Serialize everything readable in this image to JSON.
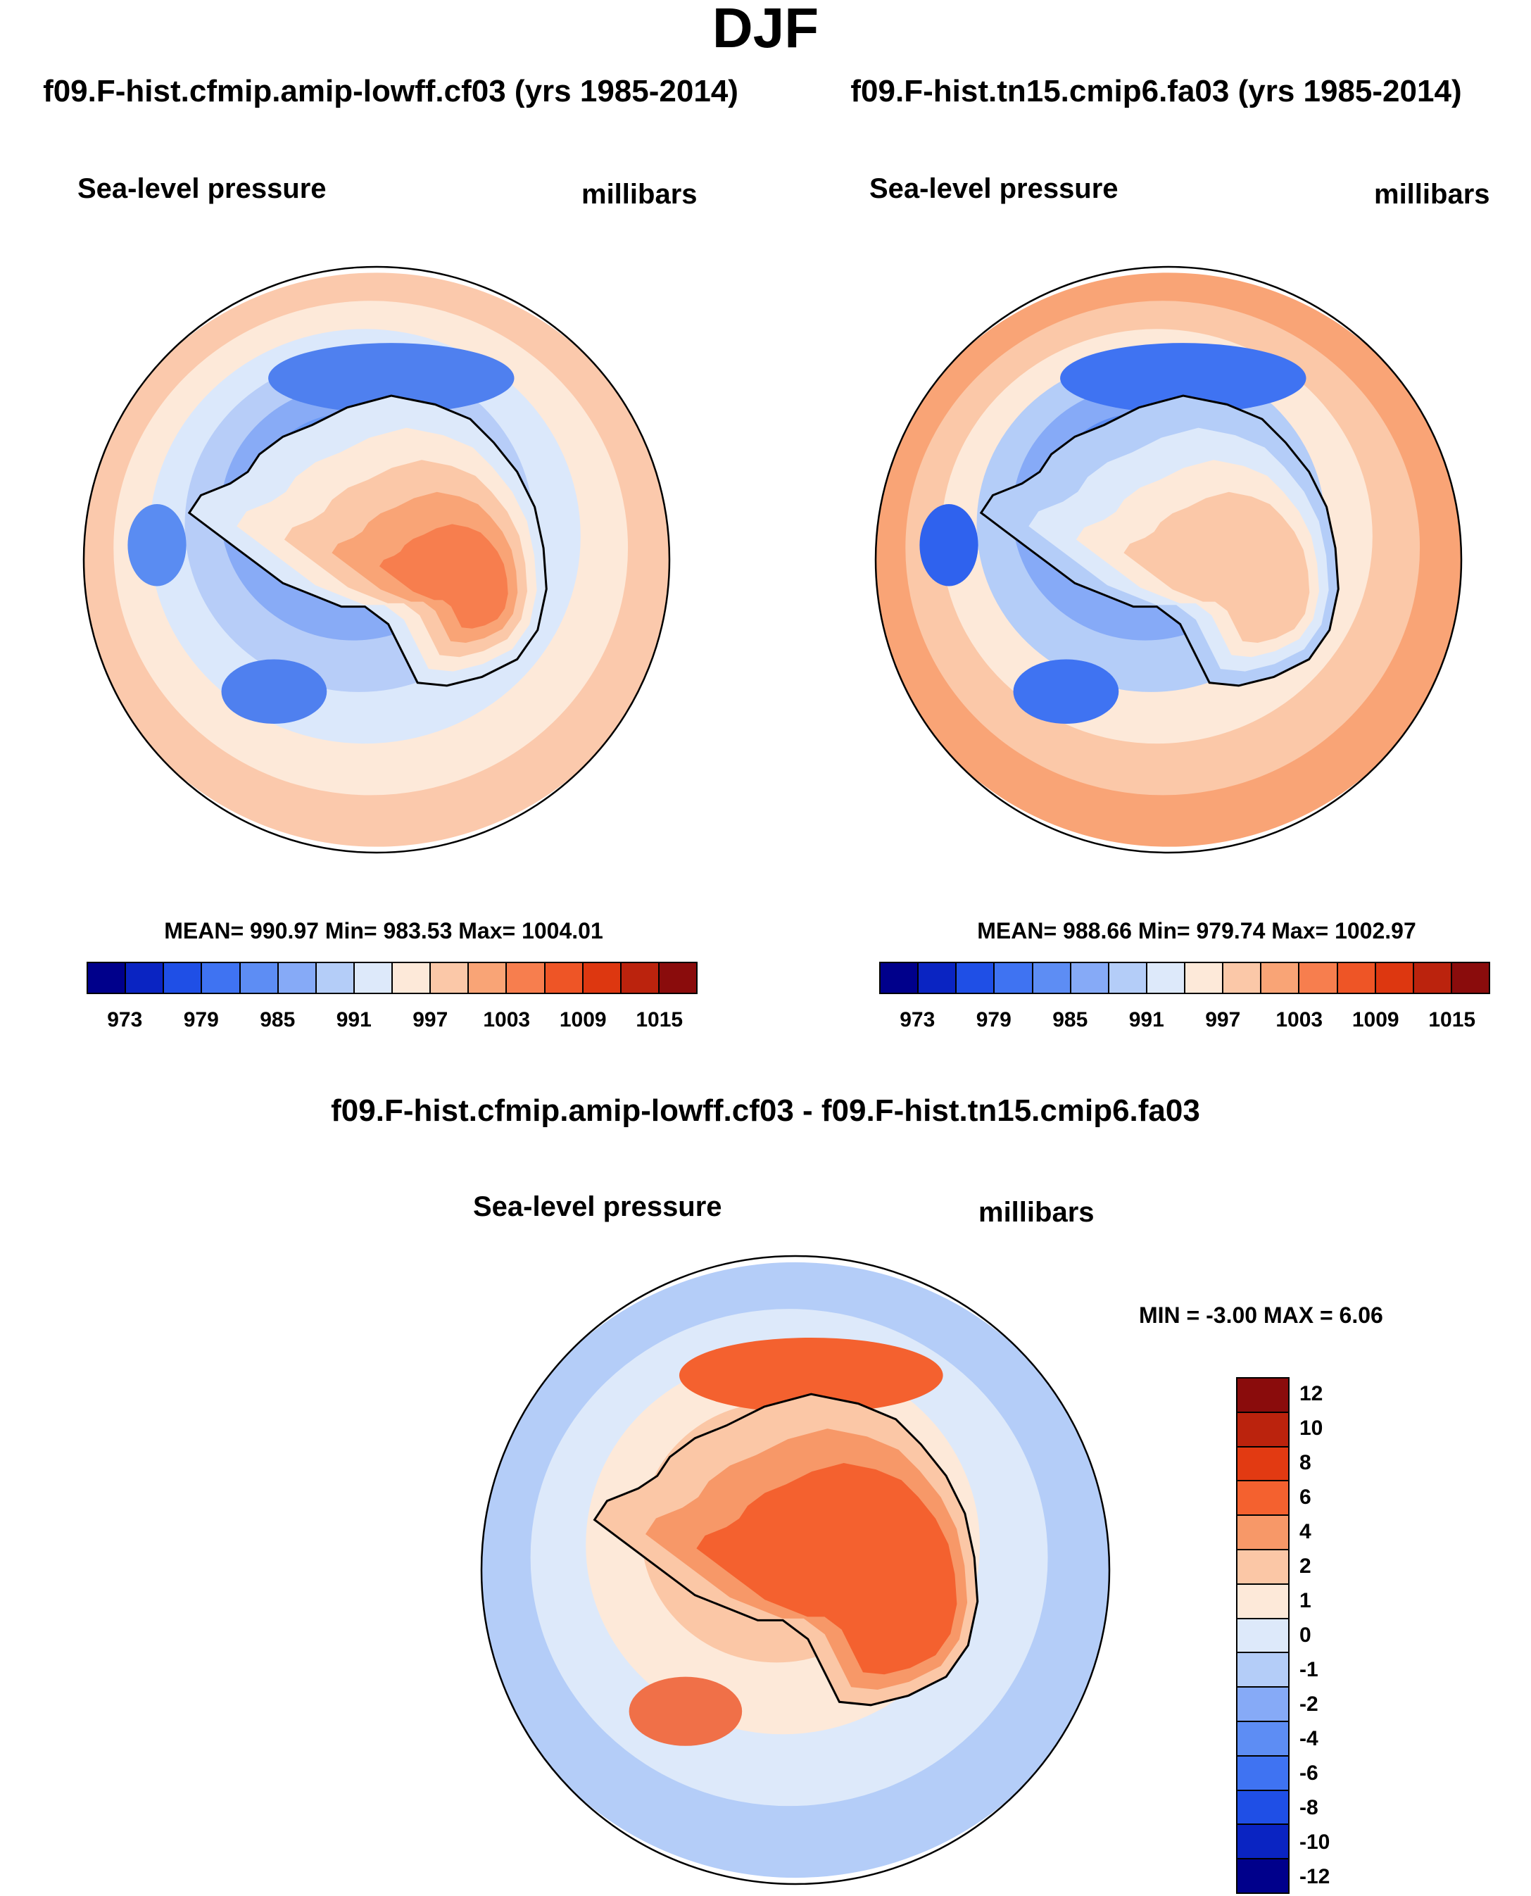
{
  "title": "DJF",
  "panels": [
    {
      "run": "f09.F-hist.cfmip.amip-lowff.cf03 (yrs 1985-2014)",
      "variable": "Sea-level pressure",
      "units": "millibars",
      "stats": "MEAN= 990.97  Min= 983.53  Max= 1004.01",
      "colorbar": {
        "colors": [
          "#00008b",
          "#0a24c2",
          "#1f4fe6",
          "#3f73f2",
          "#5d8df4",
          "#86aaf7",
          "#b4cdf8",
          "#dde9fa",
          "#fde9d9",
          "#fbc8a8",
          "#f9a476",
          "#f77e4e",
          "#ee5526",
          "#dd3710",
          "#bb230d",
          "#8a0c0c"
        ],
        "tick_labels": [
          "973",
          "979",
          "985",
          "991",
          "997",
          "1003",
          "1009",
          "1015"
        ]
      },
      "map": {
        "ocean_bands": [
          "#fbc9ac",
          "#fde9d9",
          "#dbe8fb",
          "#b7cdf8",
          "#88abf6",
          "#6a99f5"
        ],
        "lows": [
          "#4f80ef",
          "#4f80ef",
          "#5a8cf2"
        ],
        "interior": [
          "#dde9fa",
          "#fde9d9",
          "#fbc8a8",
          "#f9a476",
          "#f77e4e"
        ]
      }
    },
    {
      "run": "f09.F-hist.tn15.cmip6.fa03 (yrs 1985-2014)",
      "variable": "Sea-level pressure",
      "units": "millibars",
      "stats": "MEAN= 988.66  Min= 979.74  Max= 1002.97",
      "colorbar": {
        "colors": [
          "#00008b",
          "#0a24c2",
          "#1f4fe6",
          "#3f73f2",
          "#5d8df4",
          "#86aaf7",
          "#b4cdf8",
          "#dde9fa",
          "#fde9d9",
          "#fbc8a8",
          "#f9a476",
          "#f77e4e",
          "#ee5526",
          "#dd3710",
          "#bb230d",
          "#8a0c0c"
        ],
        "tick_labels": [
          "973",
          "979",
          "985",
          "991",
          "997",
          "1003",
          "1009",
          "1015"
        ]
      },
      "map": {
        "ocean_bands": [
          "#f9a476",
          "#fbc8a8",
          "#fde9d9",
          "#b4cdf8",
          "#86aaf7",
          "#5d8df4"
        ],
        "lows": [
          "#3f73f2",
          "#3f73f2",
          "#2f62ee"
        ],
        "interior": [
          "#b4cdf8",
          "#dde9fa",
          "#fde9d9",
          "#fbc8a8",
          "#fbc8a8"
        ]
      }
    }
  ],
  "difference": {
    "title": "f09.F-hist.cfmip.amip-lowff.cf03 - f09.F-hist.tn15.cmip6.fa03",
    "variable": "Sea-level pressure",
    "units": "millibars",
    "stats": "MIN =  -3.00 MAX =   6.06",
    "colorbar": {
      "colors": [
        "#8a0c0c",
        "#bb230d",
        "#e23a12",
        "#f4612f",
        "#f79868",
        "#fbc7a6",
        "#fde9d9",
        "#dde9fa",
        "#b4cdf8",
        "#86aaf7",
        "#5d8df4",
        "#3f73f2",
        "#1f4fe6",
        "#0a24c2",
        "#00008b"
      ],
      "tick_labels": [
        "12",
        "10",
        "8",
        "6",
        "4",
        "2",
        "1",
        "0",
        "-1",
        "-2",
        "-4",
        "-6",
        "-8",
        "-10",
        "-12"
      ]
    },
    "map": {
      "ocean_bands": [
        "#b4cdf8",
        "#dde9fa",
        "#fde9d9",
        "#fbc7a6"
      ],
      "lows": [
        "#f4612f",
        "#f07048"
      ],
      "interior": [
        "#fbc7a6",
        "#f79868",
        "#f4612f"
      ]
    }
  }
}
